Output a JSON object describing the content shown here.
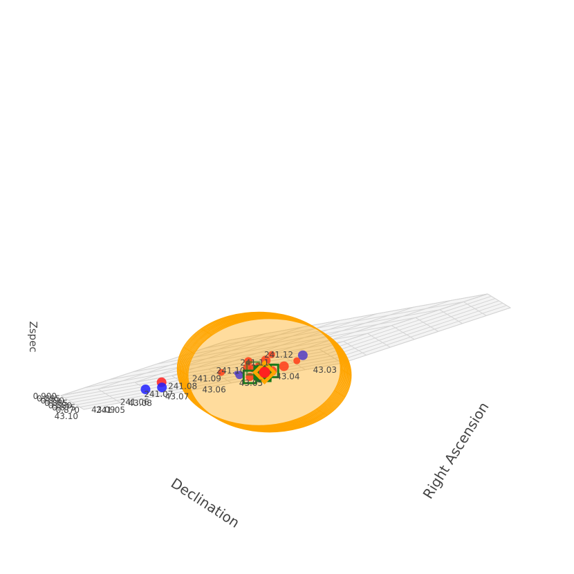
{
  "chart_data": {
    "type": "scatter3d",
    "axes": {
      "x": {
        "label": "Right Ascension",
        "range": [
          241.05,
          241.12
        ],
        "ticks": [
          "241.05",
          "241.06",
          "241.07",
          "241.08",
          "241.09",
          "241.10",
          "241.11",
          "241.12"
        ]
      },
      "y": {
        "label": "Declination",
        "range": [
          43.03,
          43.1
        ],
        "ticks": [
          "43.03",
          "43.04",
          "43.05",
          "43.06",
          "43.07",
          "43.08",
          "43.09",
          "43.10"
        ]
      },
      "z": {
        "label": "Zspec",
        "range": [
          0.87,
          0.9
        ],
        "ticks": [
          "0.870",
          "0.875",
          "0.880",
          "0.885",
          "0.890",
          "0.895",
          "0.900"
        ]
      }
    },
    "grid": true,
    "colors": {
      "red_points": "#ff2020",
      "blue_points": "#2020ff",
      "member_box": "#1a7a1a",
      "cylinder": "#ffa500",
      "center": "#ffa500"
    },
    "points": [
      {
        "ra": 241.0656,
        "dec": 43.0539,
        "z": 0.896,
        "color": "red",
        "size": 5
      },
      {
        "ra": 241.0642,
        "dec": 43.06,
        "z": 0.8926,
        "color": "red",
        "size": 6
      },
      {
        "ra": 241.0623,
        "dec": 43.068,
        "z": 0.8833,
        "color": "red",
        "size": 5
      },
      {
        "ra": 241.0677,
        "dec": 43.0652,
        "z": 0.88,
        "color": "red",
        "size": 6
      },
      {
        "ra": 241.0682,
        "dec": 43.0592,
        "z": 0.8863,
        "color": "red",
        "size": 7
      },
      {
        "ra": 241.0683,
        "dec": 43.0624,
        "z": 0.881,
        "color": "red",
        "size": 4
      },
      {
        "ra": 241.0684,
        "dec": 43.0647,
        "z": 0.8768,
        "color": "red",
        "size": 6
      },
      {
        "ra": 241.0574,
        "dec": 43.0801,
        "z": 0.8876,
        "color": "red",
        "size": 7
      },
      {
        "ra": 241.0711,
        "dec": 43.0665,
        "z": 0.8662,
        "color": "red",
        "size": 7
      },
      {
        "ra": 241.0552,
        "dec": 43.0801,
        "z": 0.8802,
        "color": "blue",
        "size": 7
      },
      {
        "ra": 241.0543,
        "dec": 43.0835,
        "z": 0.8824,
        "color": "blue",
        "size": 7
      },
      {
        "ra": 241.0675,
        "dec": 43.0691,
        "z": 0.8705,
        "color": "blue",
        "size": 6
      },
      {
        "ra": 241.075,
        "dec": 43.075,
        "z": 0.87,
        "color": "blue",
        "size": 3
      },
      {
        "ra": 241.0775,
        "dec": 43.06,
        "z": 0.8709,
        "color": "red",
        "size": 5
      },
      {
        "ra": 241.0773,
        "dec": 43.0567,
        "z": 0.8784,
        "color": "blue",
        "size": 7
      },
      {
        "ra": 241.0729,
        "dec": 43.061,
        "z": 0.8684,
        "color": "red",
        "size": 7
      },
      {
        "ra": 241.0709,
        "dec": 43.0662,
        "z": 0.8648,
        "color": "red",
        "size": 6
      },
      {
        "ra": 241.0695,
        "dec": 43.0625,
        "z": 0.8662,
        "color": "red",
        "size": 7
      },
      {
        "ra": 241.0699,
        "dec": 43.0654,
        "z": 0.8655,
        "color": "red",
        "size": 6
      },
      {
        "ra": 241.0725,
        "dec": 43.0678,
        "z": 0.8648,
        "color": "red",
        "size": 6
      },
      {
        "ra": 241.0707,
        "dec": 43.0701,
        "z": 0.8621,
        "color": "red",
        "size": 6
      },
      {
        "ra": 241.0735,
        "dec": 43.0677,
        "z": 0.8635,
        "color": "blue",
        "size": 7
      },
      {
        "ra": 241.0745,
        "dec": 43.0688,
        "z": 0.8616,
        "color": "red",
        "size": 6
      },
      {
        "ra": 241.0728,
        "dec": 43.068,
        "z": 0.86,
        "color": "red",
        "size": 6
      }
    ],
    "members": [
      {
        "ra": 241.0695,
        "dec": 43.0625,
        "z": 0.8662,
        "faded": false
      },
      {
        "ra": 241.0699,
        "dec": 43.0654,
        "z": 0.8655,
        "faded": false
      },
      {
        "ra": 241.0725,
        "dec": 43.0678,
        "z": 0.8648,
        "faded": false
      },
      {
        "ra": 241.0707,
        "dec": 43.0701,
        "z": 0.8621,
        "faded": false
      },
      {
        "ra": 241.0745,
        "dec": 43.0688,
        "z": 0.8616,
        "faded": false
      },
      {
        "ra": 241.0728,
        "dec": 43.068,
        "z": 0.86,
        "faded": false
      },
      {
        "ra": 241.0709,
        "dec": 43.0662,
        "z": 0.8648,
        "faded": true
      },
      {
        "ra": 241.0684,
        "dec": 43.0647,
        "z": 0.8768,
        "faded": true
      },
      {
        "ra": 241.0735,
        "dec": 43.0677,
        "z": 0.8635,
        "faded": false
      }
    ],
    "center": {
      "ra": 241.0713,
      "dec": 43.0659,
      "z": 0.865
    },
    "cylinder": {
      "ra": 241.0713,
      "dec": 43.0659,
      "radius_deg": 0.0137,
      "z_min": 0.8585,
      "z_max": 0.8725,
      "rings": 12,
      "meridians": 16
    }
  }
}
